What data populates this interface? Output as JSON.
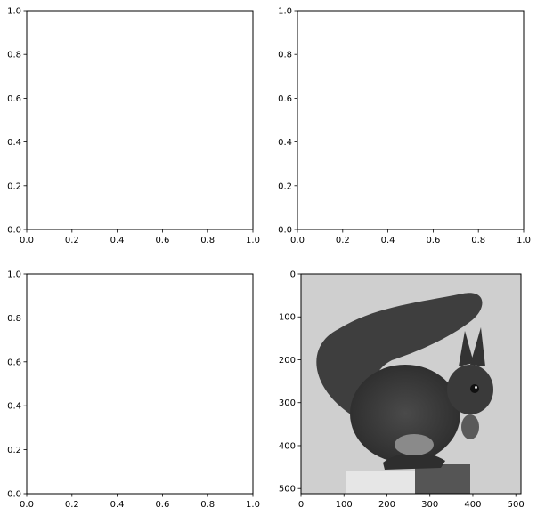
{
  "chart_data": [
    {
      "type": "scatter",
      "xlim": [
        0,
        1
      ],
      "ylim": [
        0,
        1
      ],
      "xticks": [
        "0.0",
        "0.2",
        "0.4",
        "0.6",
        "0.8",
        "1.0"
      ],
      "yticks": [
        "0.0",
        "0.2",
        "0.4",
        "0.6",
        "0.8",
        "1.0"
      ],
      "series": []
    },
    {
      "type": "scatter",
      "xlim": [
        0,
        1
      ],
      "ylim": [
        0,
        1
      ],
      "xticks": [
        "0.0",
        "0.2",
        "0.4",
        "0.6",
        "0.8",
        "1.0"
      ],
      "yticks": [
        "0.0",
        "0.2",
        "0.4",
        "0.6",
        "0.8",
        "1.0"
      ],
      "series": []
    },
    {
      "type": "scatter",
      "xlim": [
        0,
        1
      ],
      "ylim": [
        0,
        1
      ],
      "xticks": [
        "0.0",
        "0.2",
        "0.4",
        "0.6",
        "0.8",
        "1.0"
      ],
      "yticks": [
        "0.0",
        "0.2",
        "0.4",
        "0.6",
        "0.8",
        "1.0"
      ],
      "series": []
    },
    {
      "type": "heatmap",
      "image": "grayscale-squirrel-photo",
      "colormap": "gray",
      "xlim": [
        0,
        512
      ],
      "ylim": [
        512,
        0
      ],
      "xticks": [
        "0",
        "100",
        "200",
        "300",
        "400",
        "500"
      ],
      "yticks": [
        "0",
        "100",
        "200",
        "300",
        "400",
        "500"
      ],
      "background_color": "#cfcfcf",
      "squirrel_color": "#3a3a3a"
    }
  ]
}
